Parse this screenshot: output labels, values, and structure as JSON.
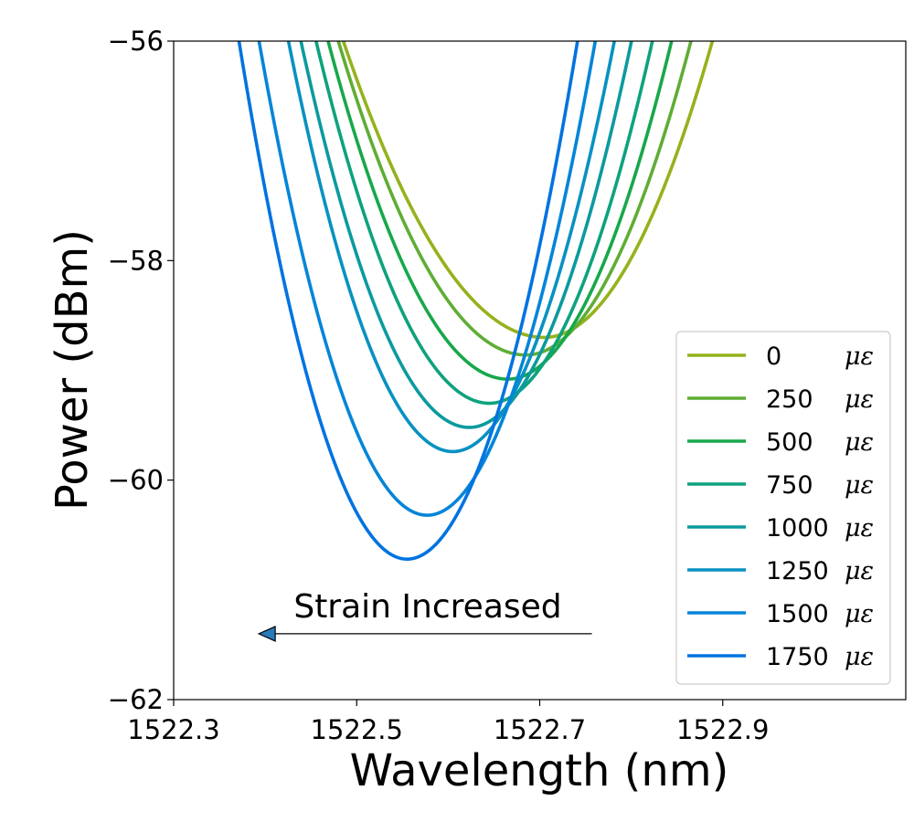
{
  "chart_data": {
    "type": "line",
    "xlabel": "Wavelength (nm)",
    "ylabel": "Power (dBm)",
    "xlim": [
      1522.3,
      1523.1
    ],
    "ylim": [
      -62,
      -56
    ],
    "xticks": [
      1522.3,
      1522.5,
      1522.7,
      1522.9
    ],
    "xtick_labels": [
      "1522.3",
      "1522.5",
      "1522.7",
      "1522.9"
    ],
    "yticks": [
      -56,
      -58,
      -60,
      -62
    ],
    "ytick_labels": [
      "−56",
      "−58",
      "−60",
      "−62"
    ],
    "grid": false,
    "legend_position": "center-right",
    "series": [
      {
        "name": "0",
        "unit": "με",
        "color": "#94b21c",
        "min_x": 1522.705,
        "min_y": -58.7
      },
      {
        "name": "250",
        "unit": "με",
        "color": "#5fad35",
        "min_x": 1522.685,
        "min_y": -58.86
      },
      {
        "name": "500",
        "unit": "με",
        "color": "#17a84a",
        "min_x": 1522.665,
        "min_y": -59.08
      },
      {
        "name": "750",
        "unit": "με",
        "color": "#0ea27e",
        "min_x": 1522.645,
        "min_y": -59.3
      },
      {
        "name": "1000",
        "unit": "με",
        "color": "#0b9a9e",
        "min_x": 1522.623,
        "min_y": -59.52
      },
      {
        "name": "1250",
        "unit": "με",
        "color": "#0891c2",
        "min_x": 1522.605,
        "min_y": -59.74
      },
      {
        "name": "1500",
        "unit": "με",
        "color": "#0485d8",
        "min_x": 1522.577,
        "min_y": -60.32
      },
      {
        "name": "1750",
        "unit": "με",
        "color": "#0073e0",
        "min_x": 1522.555,
        "min_y": -60.72
      }
    ],
    "annotation": {
      "text": "Strain Increased",
      "arrow_from": [
        1522.757,
        -61.4
      ],
      "arrow_to": [
        1522.393,
        -61.4
      ]
    }
  }
}
